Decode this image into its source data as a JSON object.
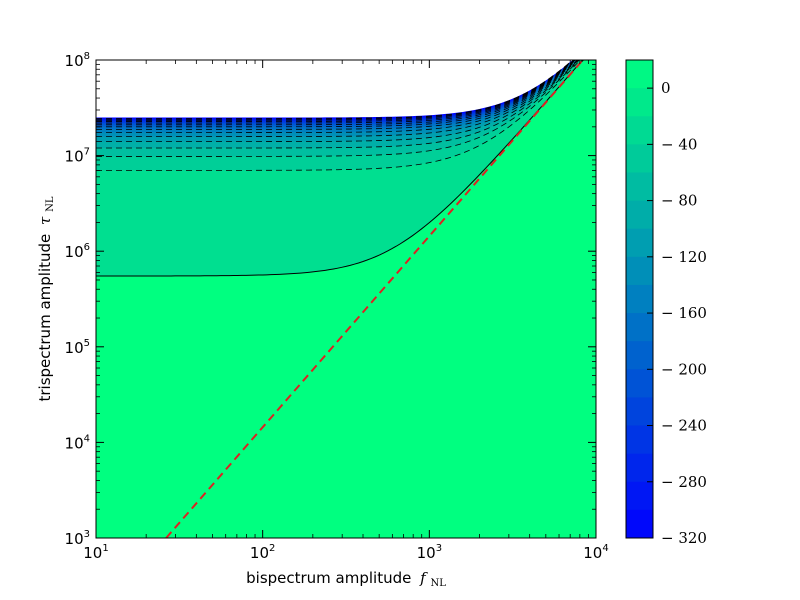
{
  "chart_data": {
    "type": "contour",
    "xlabel": "bispectrum amplitude",
    "xlabel_symbol": "f",
    "xlabel_sub": "NL",
    "ylabel": "trispectrum amplitude",
    "ylabel_symbol": "τ",
    "ylabel_sub": "NL",
    "x_scale": "log",
    "y_scale": "log",
    "xlim": [
      10,
      10000
    ],
    "ylim": [
      1000,
      100000000
    ],
    "x_ticks": [
      {
        "value": 10,
        "base": "10",
        "exp": "1"
      },
      {
        "value": 100,
        "base": "10",
        "exp": "2"
      },
      {
        "value": 1000,
        "base": "10",
        "exp": "3"
      },
      {
        "value": 10000,
        "base": "10",
        "exp": "4"
      }
    ],
    "y_ticks": [
      {
        "value": 1000,
        "base": "10",
        "exp": "3"
      },
      {
        "value": 10000,
        "base": "10",
        "exp": "4"
      },
      {
        "value": 100000,
        "base": "10",
        "exp": "5"
      },
      {
        "value": 1000000,
        "base": "10",
        "exp": "6"
      },
      {
        "value": 10000000,
        "base": "10",
        "exp": "7"
      },
      {
        "value": 100000000,
        "base": "10",
        "exp": "8"
      }
    ],
    "reference_line": {
      "style": "dashed",
      "color": "#dd2222",
      "relation": "tau_NL = (6/5 f_NL)^2",
      "coefficient": 1.44
    },
    "solid_contour": {
      "level": 0,
      "tau_floor": 550000
    },
    "dashed_contour_floors": [
      7000000,
      9800000,
      12000000,
      14000000,
      15800000,
      17400000,
      18800000,
      20000000,
      21000000,
      21900000,
      22700000,
      23400000,
      24000000,
      24500000
    ],
    "data_edge_tau": 25000000,
    "colorbar": {
      "min": -320,
      "max": 20,
      "ticks": [
        {
          "value": 0,
          "label": "0"
        },
        {
          "value": -40,
          "label": "− 40"
        },
        {
          "value": -80,
          "label": "− 80"
        },
        {
          "value": -120,
          "label": "− 120"
        },
        {
          "value": -160,
          "label": "− 160"
        },
        {
          "value": -200,
          "label": "− 200"
        },
        {
          "value": -240,
          "label": "− 240"
        },
        {
          "value": -280,
          "label": "− 280"
        },
        {
          "value": -320,
          "label": "− 320"
        }
      ],
      "color_top": "#00ff80",
      "color_bottom": "#0000ff",
      "levels": 17
    }
  }
}
